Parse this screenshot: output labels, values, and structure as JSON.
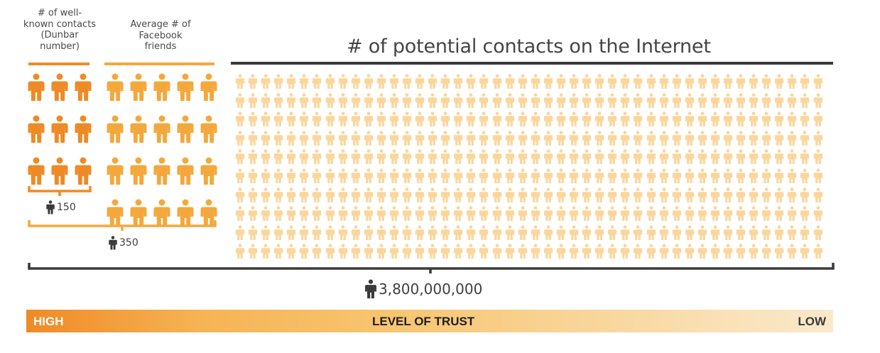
{
  "groups": {
    "dunbar": {
      "heading": "# of well-\nknown contacts\n(Dunbar\nnumber)",
      "count": "150",
      "color": "#ee8a26"
    },
    "facebook": {
      "heading": "Average # of\nFacebook\nfriends",
      "count": "350",
      "color": "#f4a83c"
    },
    "internet": {
      "heading": "# of potential contacts on the Internet",
      "count": "3,800,000,000",
      "color": "#fbd69c"
    }
  },
  "trust_scale": {
    "high_label": "HIGH",
    "center_label": "LEVEL OF TRUST",
    "low_label": "LOW"
  },
  "colors": {
    "dark": "#3a3a3a",
    "text": "#444444"
  },
  "icons": {
    "person": "person-icon"
  }
}
